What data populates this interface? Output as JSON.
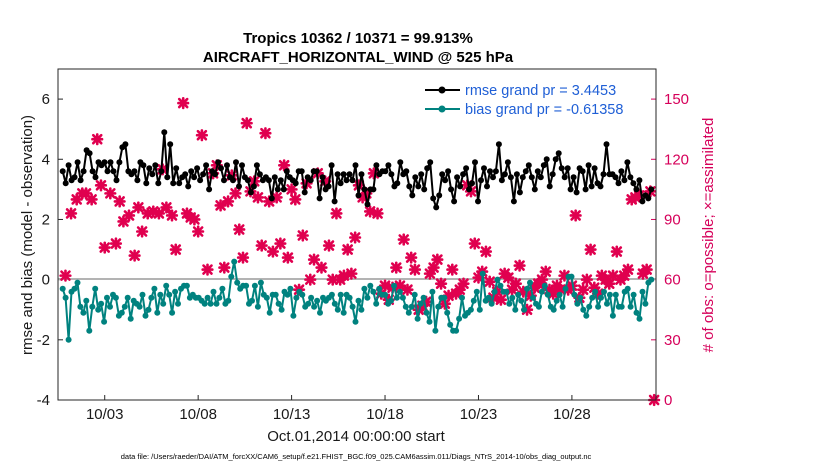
{
  "chart_data": {
    "type": "line",
    "title_line1": "Tropics 10362 / 10371 = 99.913%",
    "title_line2": "AIRCRAFT_HORIZONTAL_WIND @ 525 hPa",
    "xlabel": "Oct.01,2014 00:00:00 start",
    "ylabel_left": "rmse and bias (model - observation)",
    "ylabel_right": "# of obs: o=possible; ×=assimilated",
    "footnote": "data file: /Users/raeder/DAI/ATM_forcXX/CAM6_setup/f.e21.FHIST_BGC.f09_025.CAM6assim.011/Diags_NTrS_2014-10/obs_diag_output.nc",
    "x_range_days": [
      0.5,
      32.5
    ],
    "x_ticks": [
      {
        "day": 3,
        "label": "10/03"
      },
      {
        "day": 8,
        "label": "10/08"
      },
      {
        "day": 13,
        "label": "10/13"
      },
      {
        "day": 18,
        "label": "10/18"
      },
      {
        "day": 23,
        "label": "10/23"
      },
      {
        "day": 28,
        "label": "10/28"
      }
    ],
    "ylim_left": [
      -4,
      7
    ],
    "yticks_left": [
      "-4",
      "-2",
      "0",
      "2",
      "4",
      "6"
    ],
    "ylim_right": [
      0,
      165
    ],
    "yticks_right": [
      "0",
      "30",
      "60",
      "90",
      "120",
      "150"
    ],
    "legend": [
      "rmse grand pr = 3.4453",
      "bias grand pr = -0.61358"
    ],
    "series": [
      {
        "name": "rmse",
        "color": "#000000",
        "values": [
          3.6,
          3.2,
          3.8,
          3.3,
          3.4,
          3.9,
          3.3,
          3.6,
          4.3,
          4.2,
          3.6,
          3.4,
          3.9,
          3.8,
          3.9,
          3.6,
          3.9,
          3.6,
          3.3,
          3.9,
          4.4,
          4.5,
          3.6,
          3.5,
          3.6,
          3.3,
          3.9,
          3.8,
          3.2,
          3.7,
          3.5,
          3.8,
          3.2,
          3.6,
          4.9,
          3.4,
          4.5,
          3.2,
          3.7,
          3.2,
          3.4,
          3.5,
          3.1,
          3.6,
          3.4,
          3.7,
          3.3,
          3.5,
          3.8,
          3.0,
          3.6,
          3.5,
          3.9,
          3.7,
          3.3,
          3.8,
          3.4,
          3.3,
          3.9,
          3.1,
          3.8,
          3.4,
          3.3,
          2.9,
          3.1,
          3.8,
          3.5,
          3.3,
          3.4,
          3.3,
          2.7,
          3.4,
          3.0,
          3.3,
          3.0,
          3.6,
          3.4,
          3.3,
          3.2,
          3.6,
          3.6,
          2.9,
          3.4,
          3.3,
          3.6,
          3.6,
          2.7,
          3.4,
          3.0,
          3.1,
          3.8,
          2.6,
          3.5,
          3.2,
          3.5,
          3.3,
          3.5,
          3.3,
          3.8,
          2.8,
          3.5,
          3.0,
          2.5,
          3.0,
          3.0,
          3.8,
          3.5,
          3.6,
          3.6,
          3.8,
          3.5,
          3.1,
          3.2,
          3.9,
          3.5,
          3.6,
          3.1,
          2.8,
          3.4,
          3.1,
          3.5,
          3.0,
          3.7,
          3.9,
          2.7,
          2.4,
          2.8,
          3.5,
          3.3,
          3.6,
          3.0,
          2.6,
          3.4,
          3.1,
          3.5,
          3.7,
          3.0,
          3.2,
          3.9,
          2.6,
          3.3,
          3.7,
          3.1,
          3.6,
          3.4,
          3.6,
          4.5,
          3.3,
          3.5,
          3.9,
          3.4,
          2.6,
          3.5,
          2.9,
          3.4,
          3.6,
          3.8,
          3.4,
          3.0,
          3.6,
          3.4,
          3.8,
          4.0,
          3.1,
          3.5,
          4.0,
          4.2,
          3.7,
          3.4,
          3.7,
          3.0,
          3.4,
          2.9,
          3.7,
          3.6,
          3.0,
          3.8,
          3.1,
          3.7,
          3.2,
          3.1,
          3.5,
          4.5,
          3.5,
          3.5,
          3.4,
          3.2,
          3.6,
          3.3,
          3.9,
          3.4,
          3.2,
          3.0,
          3.3,
          2.6,
          2.8,
          2.7,
          3.0
        ]
      },
      {
        "name": "bias",
        "color": "#00827f",
        "values": [
          -0.3,
          -0.6,
          -2.0,
          -0.4,
          -0.3,
          -0.1,
          -0.9,
          -1.1,
          -0.7,
          -1.7,
          -0.9,
          -0.3,
          -1.0,
          -0.8,
          -1.4,
          -0.6,
          -0.9,
          -0.5,
          -0.6,
          -1.2,
          -1.1,
          -0.9,
          -0.6,
          -1.3,
          -0.7,
          -0.8,
          -0.9,
          -0.5,
          -1.2,
          -1.0,
          -0.6,
          -0.3,
          -1.1,
          -0.5,
          -0.8,
          -0.2,
          -0.5,
          -1.1,
          -0.4,
          -0.8,
          -0.3,
          -0.2,
          -0.2,
          -0.6,
          -0.5,
          -0.6,
          -0.6,
          -0.7,
          -0.8,
          -0.6,
          -0.8,
          -0.4,
          -0.8,
          -0.6,
          -0.3,
          -0.8,
          -0.7,
          0.1,
          0.6,
          -0.1,
          -0.3,
          -0.2,
          -0.2,
          -0.8,
          -0.7,
          -0.2,
          -0.9,
          -0.1,
          -0.5,
          -0.6,
          -1.1,
          -0.5,
          -0.5,
          -0.8,
          -1.0,
          -0.4,
          -0.5,
          -0.3,
          -1.2,
          -0.6,
          -0.4,
          -0.5,
          -0.9,
          -0.8,
          -0.6,
          -0.9,
          -0.7,
          -1.1,
          -0.6,
          -0.7,
          -0.6,
          -0.5,
          -0.8,
          -1.0,
          -0.5,
          -1.1,
          -0.5,
          -0.6,
          -0.9,
          -1.4,
          -0.7,
          -1.0,
          -0.3,
          -0.6,
          -0.2,
          -0.4,
          -0.8,
          -0.3,
          -0.5,
          -0.5,
          -0.8,
          -0.7,
          -0.2,
          -0.6,
          -0.4,
          -0.6,
          -0.9,
          -1.1,
          -0.9,
          -0.5,
          -1.3,
          -0.8,
          -0.6,
          -1.1,
          -1.4,
          -0.4,
          -1.7,
          -0.9,
          -0.6,
          -0.6,
          -1.1,
          -1.5,
          -1.7,
          -1.7,
          -1.3,
          -0.6,
          -1.2,
          -1.1,
          -1.0,
          -0.7,
          -0.4,
          -1.0,
          0.2,
          -0.7,
          -0.6,
          -0.8,
          -0.4,
          0.0,
          -0.2,
          -0.4,
          -0.4,
          -0.8,
          -0.6,
          -1.0,
          -0.5,
          -0.7,
          -1.0,
          -0.3,
          -0.1,
          -0.6,
          -0.8,
          -0.9,
          -0.4,
          -0.2,
          -0.5,
          -0.9,
          -1.0,
          -0.7,
          -0.5,
          -0.9,
          -0.3,
          0.1,
          0.1,
          -0.5,
          -0.8,
          -0.6,
          -1.0,
          -1.2,
          -0.9,
          -0.6,
          -0.4,
          -0.9,
          -0.6,
          -0.4,
          -0.8,
          -0.5,
          -1.2,
          -0.5,
          -0.9,
          -0.9,
          -0.4,
          -0.3,
          -0.9,
          -0.5,
          -1.1,
          -1.3,
          -0.4,
          -0.8,
          -0.1,
          0.0
        ]
      }
    ],
    "obs_assimilated": [
      {
        "day": 0.9,
        "count": 62
      },
      {
        "day": 1.2,
        "count": 93
      },
      {
        "day": 1.5,
        "count": 100
      },
      {
        "day": 1.8,
        "count": 103
      },
      {
        "day": 2.0,
        "count": 103
      },
      {
        "day": 2.3,
        "count": 100
      },
      {
        "day": 2.6,
        "count": 130
      },
      {
        "day": 2.8,
        "count": 107
      },
      {
        "day": 3.0,
        "count": 76
      },
      {
        "day": 3.3,
        "count": 103
      },
      {
        "day": 3.6,
        "count": 78
      },
      {
        "day": 3.8,
        "count": 99
      },
      {
        "day": 4.0,
        "count": 89
      },
      {
        "day": 4.3,
        "count": 92
      },
      {
        "day": 4.6,
        "count": 72
      },
      {
        "day": 4.8,
        "count": 96
      },
      {
        "day": 5.0,
        "count": 84
      },
      {
        "day": 5.3,
        "count": 93
      },
      {
        "day": 5.6,
        "count": 94
      },
      {
        "day": 5.9,
        "count": 93
      },
      {
        "day": 6.1,
        "count": 115
      },
      {
        "day": 6.3,
        "count": 96
      },
      {
        "day": 6.6,
        "count": 92
      },
      {
        "day": 6.8,
        "count": 75
      },
      {
        "day": 7.2,
        "count": 148
      },
      {
        "day": 7.4,
        "count": 93
      },
      {
        "day": 7.6,
        "count": 91
      },
      {
        "day": 7.8,
        "count": 90
      },
      {
        "day": 8.0,
        "count": 84
      },
      {
        "day": 8.2,
        "count": 132
      },
      {
        "day": 8.5,
        "count": 65
      },
      {
        "day": 8.8,
        "count": 113
      },
      {
        "day": 9.0,
        "count": 117
      },
      {
        "day": 9.2,
        "count": 97
      },
      {
        "day": 9.4,
        "count": 66
      },
      {
        "day": 9.6,
        "count": 99
      },
      {
        "day": 9.8,
        "count": 112
      },
      {
        "day": 10.0,
        "count": 103
      },
      {
        "day": 10.2,
        "count": 85
      },
      {
        "day": 10.4,
        "count": 71
      },
      {
        "day": 10.6,
        "count": 138
      },
      {
        "day": 10.8,
        "count": 104
      },
      {
        "day": 11.0,
        "count": 109
      },
      {
        "day": 11.2,
        "count": 101
      },
      {
        "day": 11.4,
        "count": 77
      },
      {
        "day": 11.6,
        "count": 133
      },
      {
        "day": 11.8,
        "count": 99
      },
      {
        "day": 12.0,
        "count": 74
      },
      {
        "day": 12.2,
        "count": 101
      },
      {
        "day": 12.4,
        "count": 78
      },
      {
        "day": 12.6,
        "count": 117
      },
      {
        "day": 12.8,
        "count": 71
      },
      {
        "day": 13.0,
        "count": 105
      },
      {
        "day": 13.2,
        "count": 100
      },
      {
        "day": 13.4,
        "count": 55
      },
      {
        "day": 13.6,
        "count": 82
      },
      {
        "day": 13.8,
        "count": 108
      },
      {
        "day": 14.0,
        "count": 60
      },
      {
        "day": 14.2,
        "count": 70
      },
      {
        "day": 14.4,
        "count": 113
      },
      {
        "day": 14.6,
        "count": 66
      },
      {
        "day": 14.8,
        "count": 109
      },
      {
        "day": 15.0,
        "count": 77
      },
      {
        "day": 15.2,
        "count": 60
      },
      {
        "day": 15.4,
        "count": 93
      },
      {
        "day": 15.6,
        "count": 60
      },
      {
        "day": 15.8,
        "count": 62
      },
      {
        "day": 16.0,
        "count": 75
      },
      {
        "day": 16.2,
        "count": 63
      },
      {
        "day": 16.4,
        "count": 81
      },
      {
        "day": 16.6,
        "count": 107
      },
      {
        "day": 16.8,
        "count": 101
      },
      {
        "day": 17.0,
        "count": 103
      },
      {
        "day": 17.2,
        "count": 94
      },
      {
        "day": 17.4,
        "count": 113
      },
      {
        "day": 17.6,
        "count": 93
      },
      {
        "day": 17.8,
        "count": 53
      },
      {
        "day": 18.0,
        "count": 57
      },
      {
        "day": 18.2,
        "count": 50
      },
      {
        "day": 18.4,
        "count": 56
      },
      {
        "day": 18.6,
        "count": 66
      },
      {
        "day": 18.8,
        "count": 57
      },
      {
        "day": 19.0,
        "count": 80
      },
      {
        "day": 19.2,
        "count": 55
      },
      {
        "day": 19.4,
        "count": 71
      },
      {
        "day": 19.6,
        "count": 65
      },
      {
        "day": 19.8,
        "count": 45
      },
      {
        "day": 20.0,
        "count": 47
      },
      {
        "day": 20.2,
        "count": 49
      },
      {
        "day": 20.4,
        "count": 63
      },
      {
        "day": 20.6,
        "count": 66
      },
      {
        "day": 20.8,
        "count": 70
      },
      {
        "day": 21.0,
        "count": 58
      },
      {
        "day": 21.2,
        "count": 48
      },
      {
        "day": 21.4,
        "count": 52
      },
      {
        "day": 21.6,
        "count": 65
      },
      {
        "day": 21.8,
        "count": 53
      },
      {
        "day": 22.0,
        "count": 55
      },
      {
        "day": 22.2,
        "count": 58
      },
      {
        "day": 22.4,
        "count": 107
      },
      {
        "day": 22.6,
        "count": 104
      },
      {
        "day": 22.8,
        "count": 78
      },
      {
        "day": 23.0,
        "count": 61
      },
      {
        "day": 23.2,
        "count": 64
      },
      {
        "day": 23.4,
        "count": 74
      },
      {
        "day": 23.6,
        "count": 59
      },
      {
        "day": 23.8,
        "count": 51
      },
      {
        "day": 24.0,
        "count": 54
      },
      {
        "day": 24.2,
        "count": 50
      },
      {
        "day": 24.4,
        "count": 63
      },
      {
        "day": 24.6,
        "count": 61
      },
      {
        "day": 24.8,
        "count": 55
      },
      {
        "day": 25.0,
        "count": 58
      },
      {
        "day": 25.2,
        "count": 67
      },
      {
        "day": 25.4,
        "count": 54
      },
      {
        "day": 25.6,
        "count": 45
      },
      {
        "day": 25.8,
        "count": 52
      },
      {
        "day": 26.0,
        "count": 56
      },
      {
        "day": 26.2,
        "count": 58
      },
      {
        "day": 26.4,
        "count": 60
      },
      {
        "day": 26.6,
        "count": 64
      },
      {
        "day": 26.8,
        "count": 55
      },
      {
        "day": 27.0,
        "count": 53
      },
      {
        "day": 27.2,
        "count": 57
      },
      {
        "day": 27.4,
        "count": 55
      },
      {
        "day": 27.6,
        "count": 62
      },
      {
        "day": 27.8,
        "count": 55
      },
      {
        "day": 28.0,
        "count": 57
      },
      {
        "day": 28.2,
        "count": 92
      },
      {
        "day": 28.4,
        "count": 51
      },
      {
        "day": 28.6,
        "count": 55
      },
      {
        "day": 28.8,
        "count": 60
      },
      {
        "day": 29.0,
        "count": 75
      },
      {
        "day": 29.2,
        "count": 56
      },
      {
        "day": 29.4,
        "count": 53
      },
      {
        "day": 29.6,
        "count": 62
      },
      {
        "day": 29.8,
        "count": 60
      },
      {
        "day": 30.0,
        "count": 58
      },
      {
        "day": 30.2,
        "count": 62
      },
      {
        "day": 30.4,
        "count": 74
      },
      {
        "day": 30.6,
        "count": 60
      },
      {
        "day": 30.8,
        "count": 62
      },
      {
        "day": 31.0,
        "count": 65
      },
      {
        "day": 31.2,
        "count": 100
      },
      {
        "day": 31.4,
        "count": 101
      },
      {
        "day": 31.6,
        "count": 102
      },
      {
        "day": 31.8,
        "count": 63
      },
      {
        "day": 32.0,
        "count": 65
      },
      {
        "day": 32.2,
        "count": 104
      },
      {
        "day": 32.4,
        "count": 0
      }
    ]
  }
}
